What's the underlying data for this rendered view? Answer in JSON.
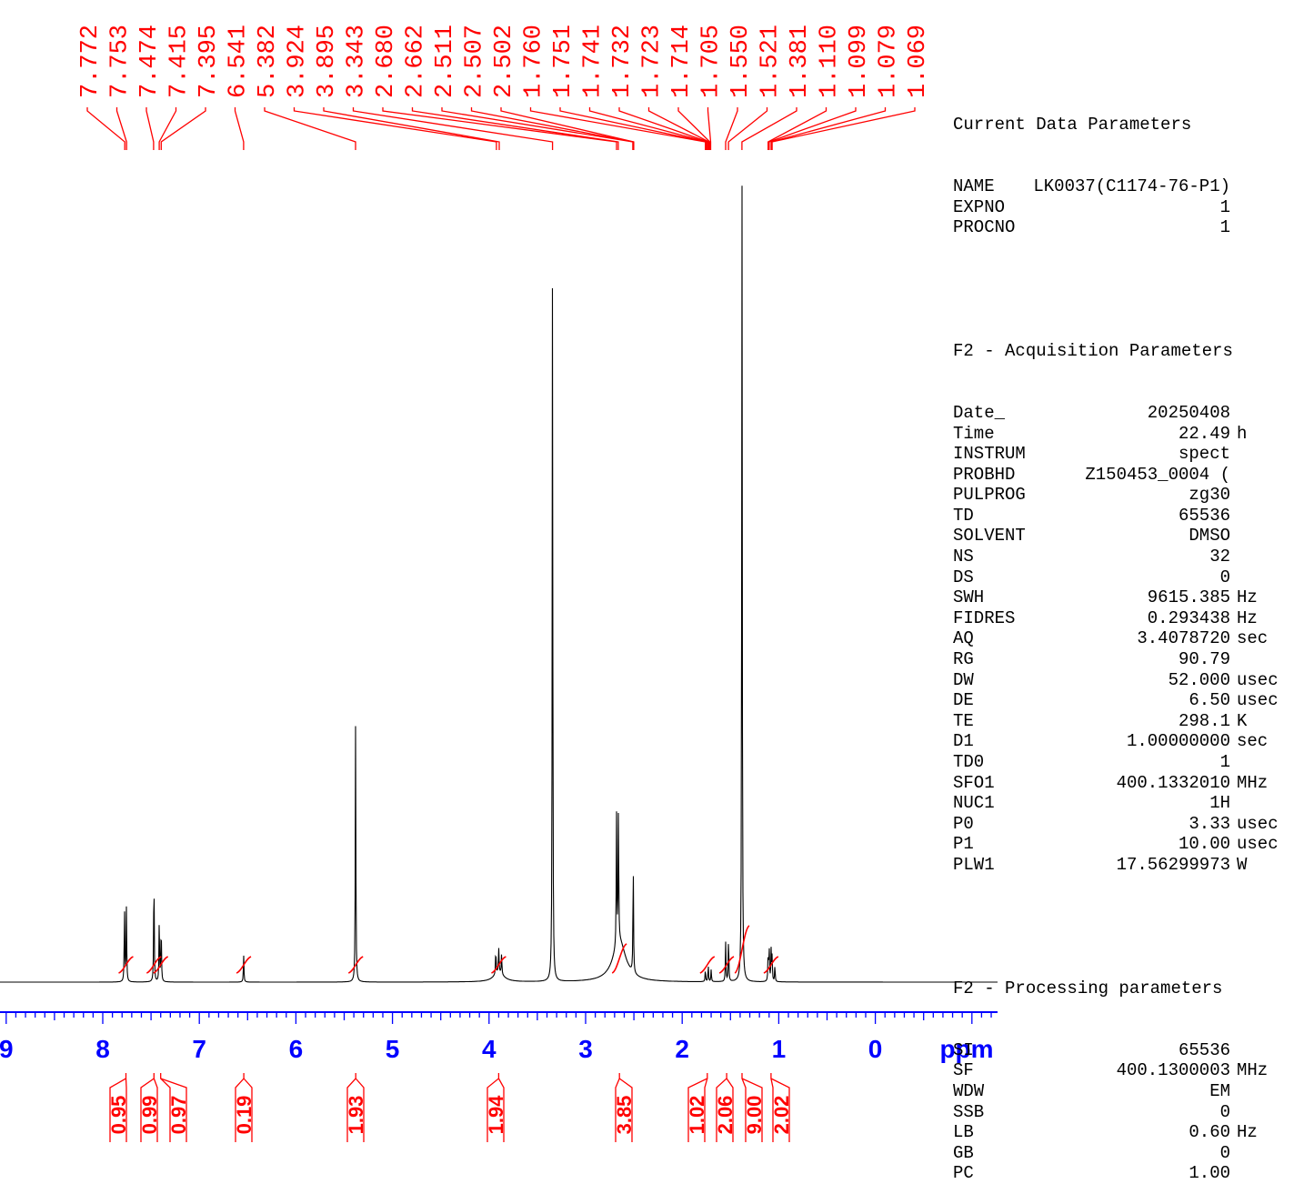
{
  "chart_data": {
    "type": "line",
    "title": "",
    "xlabel": "ppm",
    "ylabel": "",
    "xlim": [
      9.0,
      -1.27
    ],
    "axis": {
      "major_ticks": [
        9,
        8,
        7,
        6,
        5,
        4,
        3,
        2,
        1,
        0
      ],
      "unit_label": "ppm",
      "tick_color": "#0000ff"
    },
    "peak_labels": [
      "7.772",
      "7.753",
      "7.474",
      "7.415",
      "7.395",
      "6.541",
      "5.382",
      "3.924",
      "3.895",
      "3.343",
      "2.680",
      "2.662",
      "2.511",
      "2.507",
      "2.502",
      "1.760",
      "1.751",
      "1.741",
      "1.732",
      "1.723",
      "1.714",
      "1.705",
      "1.550",
      "1.521",
      "1.381",
      "1.110",
      "1.099",
      "1.079",
      "1.069"
    ],
    "series": [
      {
        "peaks": [
          {
            "ppm": 7.775,
            "h": 0.09
          },
          {
            "ppm": 7.755,
            "h": 0.09
          },
          {
            "ppm": 7.47,
            "h": 0.135
          },
          {
            "ppm": 7.415,
            "h": 0.075
          },
          {
            "ppm": 7.395,
            "h": 0.07
          },
          {
            "ppm": 6.541,
            "h": 0.033
          },
          {
            "ppm": 5.382,
            "h": 0.315
          },
          {
            "ppm": 3.93,
            "h": 0.03
          },
          {
            "ppm": 3.9,
            "h": 0.03
          },
          {
            "ppm": 3.87,
            "h": 0.025
          },
          {
            "ppm": 3.343,
            "h": 0.88
          },
          {
            "ppm": 2.68,
            "h": 0.16
          },
          {
            "ppm": 2.66,
            "h": 0.165
          },
          {
            "ppm": 2.507,
            "h": 0.135
          },
          {
            "ppm": 1.76,
            "h": 0.015
          },
          {
            "ppm": 1.73,
            "h": 0.02
          },
          {
            "ppm": 1.7,
            "h": 0.015
          },
          {
            "ppm": 1.55,
            "h": 0.048
          },
          {
            "ppm": 1.52,
            "h": 0.055
          },
          {
            "ppm": 1.381,
            "h": 1.0
          },
          {
            "ppm": 1.11,
            "h": 0.035
          },
          {
            "ppm": 1.099,
            "h": 0.04
          },
          {
            "ppm": 1.079,
            "h": 0.038
          },
          {
            "ppm": 1.069,
            "h": 0.03
          },
          {
            "ppm": 1.04,
            "h": 0.02
          }
        ]
      }
    ],
    "integrals": [
      {
        "ppm": 7.76,
        "value": "0.95"
      },
      {
        "ppm": 7.47,
        "value": "0.99"
      },
      {
        "ppm": 7.4,
        "value": "0.97"
      },
      {
        "ppm": 6.54,
        "value": "0.19"
      },
      {
        "ppm": 5.38,
        "value": "1.93"
      },
      {
        "ppm": 3.9,
        "value": "1.94"
      },
      {
        "ppm": 2.65,
        "value": "3.85"
      },
      {
        "ppm": 1.74,
        "value": "1.02"
      },
      {
        "ppm": 1.54,
        "value": "2.06"
      },
      {
        "ppm": 1.38,
        "value": "9.00"
      },
      {
        "ppm": 1.08,
        "value": "2.02"
      }
    ]
  },
  "parameters": {
    "current": {
      "heading": "Current Data Parameters",
      "rows": [
        {
          "key": "NAME",
          "value": "LK0037(C1174-76-P1)",
          "unit": ""
        },
        {
          "key": "EXPNO",
          "value": "1",
          "unit": ""
        },
        {
          "key": "PROCNO",
          "value": "1",
          "unit": ""
        }
      ]
    },
    "acquisition": {
      "heading": "F2 - Acquisition Parameters",
      "rows": [
        {
          "key": "Date_",
          "value": "20250408",
          "unit": ""
        },
        {
          "key": "Time",
          "value": "22.49",
          "unit": "h"
        },
        {
          "key": "INSTRUM",
          "value": "spect",
          "unit": ""
        },
        {
          "key": "PROBHD",
          "value": "Z150453_0004 (",
          "unit": ""
        },
        {
          "key": "PULPROG",
          "value": "zg30",
          "unit": ""
        },
        {
          "key": "TD",
          "value": "65536",
          "unit": ""
        },
        {
          "key": "SOLVENT",
          "value": "DMSO",
          "unit": ""
        },
        {
          "key": "NS",
          "value": "32",
          "unit": ""
        },
        {
          "key": "DS",
          "value": "0",
          "unit": ""
        },
        {
          "key": "SWH",
          "value": "9615.385",
          "unit": "Hz"
        },
        {
          "key": "FIDRES",
          "value": "0.293438",
          "unit": "Hz"
        },
        {
          "key": "AQ",
          "value": "3.4078720",
          "unit": "sec"
        },
        {
          "key": "RG",
          "value": "90.79",
          "unit": ""
        },
        {
          "key": "DW",
          "value": "52.000",
          "unit": "usec"
        },
        {
          "key": "DE",
          "value": "6.50",
          "unit": "usec"
        },
        {
          "key": "TE",
          "value": "298.1",
          "unit": "K"
        },
        {
          "key": "D1",
          "value": "1.00000000",
          "unit": "sec"
        },
        {
          "key": "TD0",
          "value": "1",
          "unit": ""
        },
        {
          "key": "SFO1",
          "value": "400.1332010",
          "unit": "MHz"
        },
        {
          "key": "NUC1",
          "value": "1H",
          "unit": ""
        },
        {
          "key": "P0",
          "value": "3.33",
          "unit": "usec"
        },
        {
          "key": "P1",
          "value": "10.00",
          "unit": "usec"
        },
        {
          "key": "PLW1",
          "value": "17.56299973",
          "unit": "W"
        }
      ]
    },
    "processing": {
      "heading": "F2 - Processing parameters",
      "rows": [
        {
          "key": "SI",
          "value": "65536",
          "unit": ""
        },
        {
          "key": "SF",
          "value": "400.1300003",
          "unit": "MHz"
        },
        {
          "key": "WDW",
          "value": "EM",
          "unit": ""
        },
        {
          "key": "SSB",
          "value": "0",
          "unit": ""
        },
        {
          "key": "LB",
          "value": "0.60",
          "unit": "Hz"
        },
        {
          "key": "GB",
          "value": "0",
          "unit": ""
        },
        {
          "key": "PC",
          "value": "1.00",
          "unit": ""
        }
      ]
    }
  },
  "colors": {
    "label": "#ff0000",
    "axis": "#0000ff",
    "spectrum": "#000000",
    "integral": "#ff0000"
  }
}
